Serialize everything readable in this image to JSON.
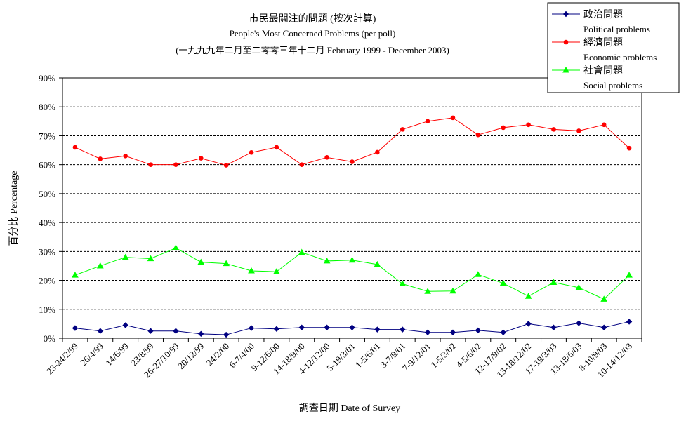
{
  "chart_data": {
    "type": "line",
    "title": "市民最關注的問題 (按次計算)",
    "subtitle": "People's Most Concerned Problems  (per poll)",
    "subtitle2": "(一九九九年二月至二零零三年十二月 February 1999 - December 2003)",
    "xlabel": "調查日期 Date of Survey",
    "ylabel": "百分比 Percentage",
    "ylim": [
      0,
      90
    ],
    "yticks": [
      "0%",
      "10%",
      "20%",
      "30%",
      "40%",
      "50%",
      "60%",
      "70%",
      "80%",
      "90%"
    ],
    "grid": true,
    "legend_position": "top-right",
    "categories": [
      "23-24/2/99",
      "26/4/99",
      "14/6/99",
      "23/8/99",
      "26-27/10/99",
      "20/12/99",
      "24/2/00",
      "6-7/4/00",
      "9-12/6/00",
      "14-18/9/00",
      "4-12/12/00",
      "5-19/3/01",
      "1-5/6/01",
      "3-7/9/01",
      "7-9/12/01",
      "1-5/3/02",
      "4-5/6/02",
      "12-17/9/02",
      "13-18/12/02",
      "17-19/3/03",
      "13-18/6/03",
      "8-10/9/03",
      "10-14/12/03"
    ],
    "series": [
      {
        "name": "政治問題",
        "name_en": "Political problems",
        "color": "#000080",
        "marker": "diamond",
        "values": [
          3.5,
          2.5,
          4.5,
          2.5,
          2.5,
          1.5,
          1.2,
          3.5,
          3.2,
          3.7,
          3.7,
          3.7,
          3.0,
          3.0,
          2.0,
          2.0,
          2.7,
          2.0,
          5.0,
          3.7,
          5.2,
          3.7,
          5.7
        ]
      },
      {
        "name": "經濟問題",
        "name_en": "Economic problems",
        "color": "#ff0000",
        "marker": "circle",
        "values": [
          66.0,
          62.0,
          63.0,
          60.0,
          60.0,
          62.2,
          59.8,
          64.2,
          66.0,
          60.0,
          62.5,
          61.0,
          64.3,
          72.2,
          75.0,
          76.2,
          70.3,
          72.8,
          73.8,
          72.2,
          71.7,
          73.8,
          65.7
        ]
      },
      {
        "name": "社會問題",
        "name_en": "Social problems",
        "color": "#00ff00",
        "marker": "triangle",
        "values": [
          21.8,
          25.0,
          28.0,
          27.5,
          31.2,
          26.3,
          25.8,
          23.3,
          23.0,
          29.7,
          26.7,
          27.0,
          25.5,
          18.8,
          16.2,
          16.3,
          22.0,
          19.0,
          14.5,
          19.3,
          17.5,
          13.5,
          21.8
        ]
      }
    ]
  }
}
